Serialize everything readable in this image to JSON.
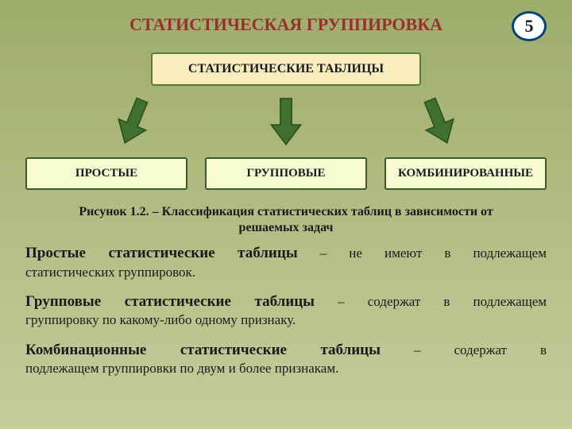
{
  "colors": {
    "bg_top": "#9eac6a",
    "bg_bottom": "#c5cd9c",
    "title_color": "#9b2f2f",
    "pagenum_border": "#00437a",
    "pagenum_bg": "#ffffff",
    "pagenum_text": "#1a1a1a",
    "topbox_bg": "#faedbe",
    "topbox_border": "#5a7a3a",
    "topbox_text": "#1a1a1a",
    "arrow_fill": "#3f702d",
    "arrow_stroke": "#2b4e1e",
    "box_bg": "#f7fbd2",
    "box_border": "#3f5a2a",
    "box_text": "#1a1a1a",
    "body_text": "#1a1a1a"
  },
  "fonts": {
    "title_size": 22,
    "pagenum_size": 22,
    "topbox_size": 16,
    "box_size": 15,
    "caption_size": 16,
    "para_size": 17,
    "lead_size": 19
  },
  "layout": {
    "topbox_width": 340,
    "arrow_w": 42,
    "arrow_h": 62,
    "arrow_rotations": [
      22,
      0,
      -22
    ]
  },
  "header": {
    "title": "СТАТИСТИЧЕСКАЯ ГРУППИРОВКА",
    "page": "5"
  },
  "diagram": {
    "top_label": "СТАТИСТИЧЕСКИЕ ТАБЛИЦЫ",
    "children": [
      {
        "label": "ПРОСТЫЕ"
      },
      {
        "label": "ГРУППОВЫЕ"
      },
      {
        "label": "КОМБИНИРОВАННЫЕ"
      }
    ]
  },
  "caption": {
    "line1": "Рисунок 1.2. – Классификация статистических таблиц в зависимости от",
    "line2": "решаемых задач"
  },
  "paragraphs": [
    {
      "lead": "Простые статистические таблицы",
      "rest_first": " – не имеют в подлежащем",
      "rest_cont": "статистических группировок."
    },
    {
      "lead": "Групповые статистические таблицы",
      "rest_first": " – содержат в подлежащем",
      "rest_cont": "группировку по какому-либо одному признаку."
    },
    {
      "lead": "Комбинационные статистические таблицы",
      "rest_first": " – содержат в",
      "rest_cont": "подлежащем группировки по двум и более признакам."
    }
  ]
}
